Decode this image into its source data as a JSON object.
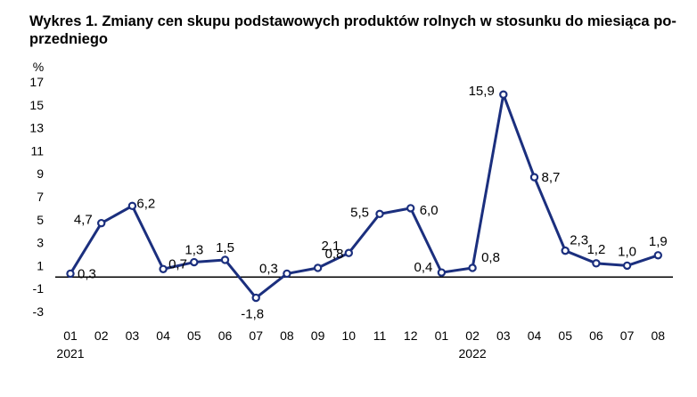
{
  "chart_data": {
    "type": "line",
    "title": "Wykres 1. Zmiany cen skupu podstawowych produktów rolnych w stosunku do miesiąca poprzedniego",
    "title_display": "Wykres 1. Zmiany cen skupu podstawowych produktów rolnych w stosunku do miesiąca po-\nprzedniego",
    "ylabel": "%",
    "xlabel": "",
    "ylim": [
      -3,
      17
    ],
    "yticks": [
      "-3",
      "-1",
      "1",
      "3",
      "5",
      "7",
      "9",
      "11",
      "13",
      "15",
      "17"
    ],
    "categories": [
      "01",
      "02",
      "03",
      "04",
      "05",
      "06",
      "07",
      "08",
      "09",
      "10",
      "11",
      "12",
      "01",
      "02",
      "03",
      "04",
      "05",
      "06",
      "07",
      "08"
    ],
    "year_labels": [
      {
        "index": 0,
        "text": "2021"
      },
      {
        "index": 13,
        "text": "2022"
      }
    ],
    "grid": false,
    "series": [
      {
        "values": [
          0.3,
          4.7,
          6.2,
          0.7,
          1.3,
          1.5,
          -1.8,
          0.3,
          0.8,
          2.1,
          5.5,
          6.0,
          0.4,
          0.8,
          15.9,
          8.7,
          2.3,
          1.2,
          1.0,
          1.9
        ],
        "labels": [
          "0,3",
          "4,7",
          "6,2",
          "0,7",
          "1,3",
          "1,5",
          "-1,8",
          "0,3",
          "0,8",
          "2,1",
          "5,5",
          "6,0",
          "0,4",
          "0,8",
          "15,9",
          "8,7",
          "2,3",
          "1,2",
          "1,0",
          "1,9"
        ]
      }
    ],
    "colors": {
      "line": "#1b2f7e",
      "marker_fill": "#ffffff",
      "baseline": "#000000"
    }
  }
}
